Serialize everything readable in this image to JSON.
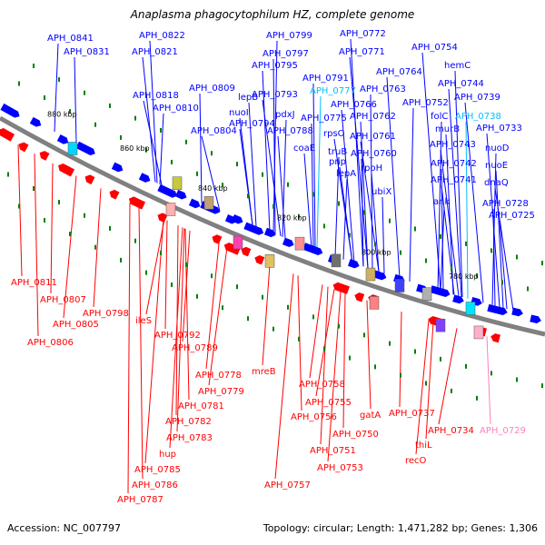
{
  "title": "Anaplasma phagocytophilum HZ, complete genome",
  "footer": {
    "accession": "Accession: NC_007797",
    "summary": "Topology: circular; Length: 1,471,282 bp; Genes: 1,306"
  },
  "colors": {
    "forward": "#0000ff",
    "reverse": "#ff0000",
    "rna_cyan": "#00bfff",
    "pseudo_pink": "#ff80c0",
    "backbone": "#808080",
    "gc_green": "#008000"
  },
  "kbp_ticks": [
    "880 kbp",
    "860 kbp",
    "840 kbp",
    "820 kbp",
    "800 kbp",
    "780 kbp"
  ],
  "forward_labels": [
    "APH_0841",
    "APH_0831",
    "APH_0822",
    "APH_0821",
    "APH_0818",
    "APH_0810",
    "APH_0809",
    "lepB",
    "nuoI",
    "APH_0804",
    "APH_0799",
    "APH_0797",
    "APH_0795",
    "APH_0794",
    "APH_0793",
    "pdxJ",
    "APH_0791",
    "APH_0788",
    "APH_0772",
    "APH_0771",
    "APH_0777",
    "APH_0775",
    "coaE",
    "APH_0766",
    "rpsO",
    "truB",
    "APH_0763",
    "APH_0762",
    "pnp",
    "APH_0761",
    "lepA",
    "APH_0760",
    "rpoH",
    "APH_0764",
    "APH_0754",
    "APH_0752",
    "ubiX",
    "hemC",
    "APH_0744",
    "APH_0739",
    "folC",
    "APH_0738",
    "murB",
    "APH_0733",
    "APH_0743",
    "nuoD",
    "APH_0742",
    "nuoE",
    "APH_0741",
    "dnaQ",
    "ank",
    "APH_0728",
    "APH_0725"
  ],
  "reverse_labels": [
    "APH_0811",
    "APH_0807",
    "APH_0798",
    "APH_0805",
    "ileS",
    "APH_0806",
    "APH_0792",
    "APH_0789",
    "APH_0778",
    "APH_0779",
    "APH_0781",
    "APH_0782",
    "APH_0783",
    "hup",
    "APH_0785",
    "APH_0786",
    "APH_0787",
    "mreB",
    "APH_0758",
    "APH_0755",
    "APH_0756",
    "APH_0750",
    "APH_0751",
    "APH_0753",
    "APH_0757",
    "gatA",
    "APH_0737",
    "thiL",
    "recO",
    "APH_0734",
    "APH_0729"
  ]
}
